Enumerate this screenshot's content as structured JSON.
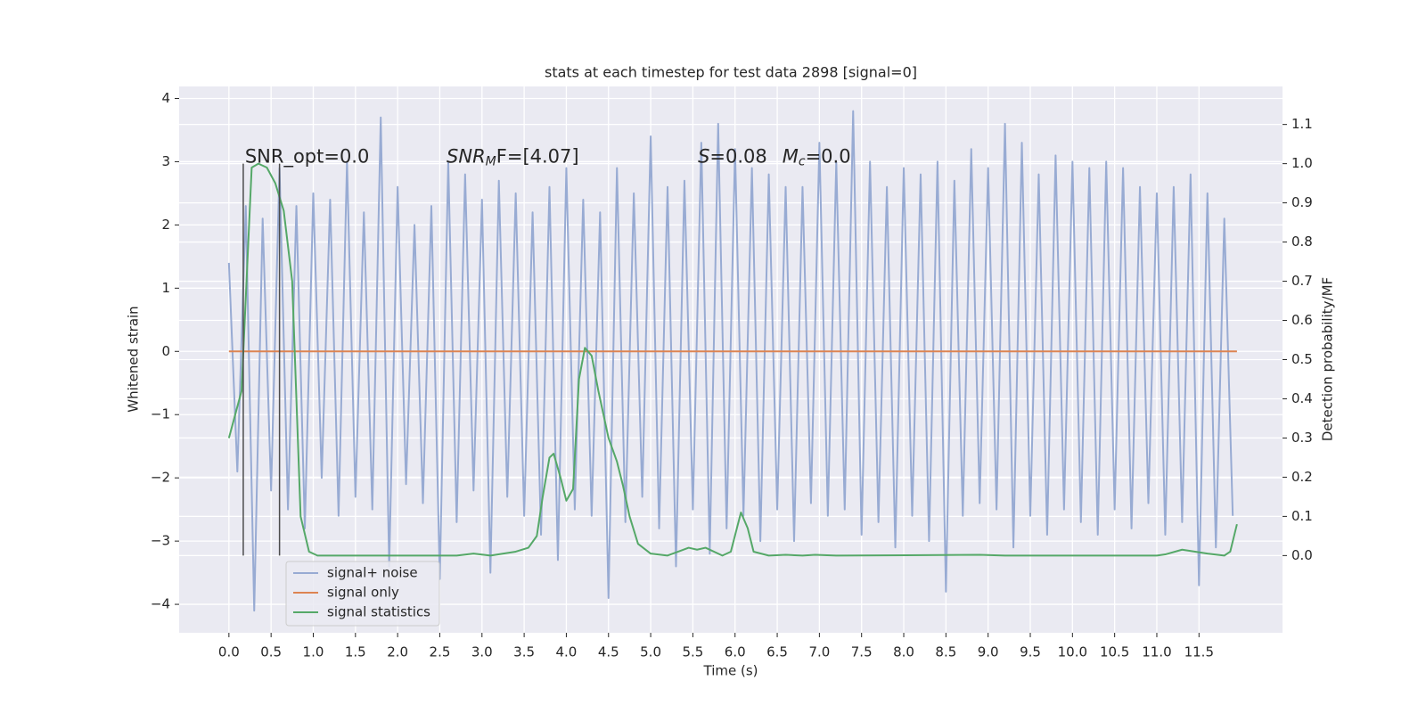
{
  "chart_data": {
    "type": "line",
    "title": "stats at each timestep for test data 2898 [signal=0]",
    "xlabel": "Time (s)",
    "ylabel": "Whitened strain",
    "y2label": "Detection probability/MF",
    "xlim": [
      -0.59,
      12.49
    ],
    "ylim": [
      -4.45,
      4.19
    ],
    "y2lim": [
      -0.197,
      1.197
    ],
    "xticks": [
      {
        "value": 0,
        "label": "0.0"
      },
      0.5,
      {
        "value": 1,
        "label": "1.0"
      },
      1.5,
      {
        "value": 2,
        "label": "2.0"
      },
      2.5,
      {
        "value": 3,
        "label": "3.0"
      },
      3.5,
      {
        "value": 4,
        "label": "4.0"
      },
      4.5,
      {
        "value": 5,
        "label": "5.0"
      },
      5.5,
      {
        "value": 6,
        "label": "6.0"
      },
      6.5,
      {
        "value": 7,
        "label": "7.0"
      },
      7.5,
      {
        "value": 8,
        "label": "8.0"
      },
      8.5,
      {
        "value": 9,
        "label": "9.0"
      },
      9.5,
      {
        "value": 10,
        "label": "10.0"
      },
      10.5,
      {
        "value": 11,
        "label": "11.0"
      },
      11.5
    ],
    "yticks": [
      {
        "value": -4,
        "label": "−4"
      },
      {
        "value": -3,
        "label": "−3"
      },
      {
        "value": -2,
        "label": "−2"
      },
      {
        "value": -1,
        "label": "−1"
      },
      0,
      1,
      2,
      3,
      4
    ],
    "y2ticks": [
      {
        "value": 0,
        "label": "0.0"
      },
      0.1,
      0.2,
      0.3,
      0.4,
      0.5,
      0.6,
      0.7,
      0.8,
      0.9,
      {
        "value": 1,
        "label": "1.0"
      },
      1.1
    ],
    "grid": true,
    "legend": "lower left",
    "series": [
      {
        "name": "signal+ noise",
        "color": "#98abd3",
        "x": [
          0,
          0.1,
          0.2,
          0.3,
          0.4,
          0.5,
          0.6,
          0.7,
          0.8,
          0.9,
          1,
          1.1,
          1.2,
          1.3,
          1.4,
          1.5,
          1.6,
          1.7,
          1.8,
          1.9,
          2,
          2.1,
          2.2,
          2.3,
          2.4,
          2.5,
          2.6,
          2.7,
          2.8,
          2.9,
          3,
          3.1,
          3.2,
          3.3,
          3.4,
          3.5,
          3.6,
          3.7,
          3.8,
          3.9,
          4,
          4.1,
          4.2,
          4.3,
          4.4,
          4.5,
          4.6,
          4.7,
          4.8,
          4.9,
          5,
          5.1,
          5.2,
          5.3,
          5.4,
          5.5,
          5.6,
          5.7,
          5.8,
          5.9,
          6,
          6.1,
          6.2,
          6.3,
          6.4,
          6.5,
          6.6,
          6.7,
          6.8,
          6.9,
          7,
          7.1,
          7.2,
          7.3,
          7.4,
          7.5,
          7.6,
          7.7,
          7.8,
          7.9,
          8,
          8.1,
          8.2,
          8.3,
          8.4,
          8.5,
          8.6,
          8.7,
          8.8,
          8.9,
          9,
          9.1,
          9.2,
          9.3,
          9.4,
          9.5,
          9.6,
          9.7,
          9.8,
          9.9,
          10,
          10.1,
          10.2,
          10.3,
          10.4,
          10.5,
          10.6,
          10.7,
          10.8,
          10.9,
          11,
          11.1,
          11.2,
          11.3,
          11.4,
          11.5,
          11.6,
          11.7,
          11.8,
          11.9
        ],
        "values": [
          1.4,
          -1.9,
          2.3,
          -4.1,
          2.1,
          -2.2,
          2.9,
          -2.5,
          2.3,
          -2.8,
          2.5,
          -2.0,
          2.4,
          -2.6,
          3.0,
          -2.3,
          2.2,
          -2.5,
          3.7,
          -3.4,
          2.6,
          -2.1,
          2.0,
          -2.4,
          2.3,
          -3.6,
          3.0,
          -2.7,
          2.8,
          -2.2,
          2.4,
          -3.5,
          2.7,
          -2.3,
          2.5,
          -2.6,
          2.2,
          -2.9,
          2.6,
          -3.3,
          2.9,
          -2.5,
          2.4,
          -2.6,
          2.2,
          -3.9,
          2.9,
          -2.7,
          2.5,
          -2.3,
          3.4,
          -2.8,
          2.6,
          -3.4,
          2.7,
          -2.5,
          3.3,
          -3.2,
          3.6,
          -2.8,
          3.2,
          -2.6,
          2.9,
          -3.0,
          2.8,
          -2.5,
          2.6,
          -3.0,
          2.6,
          -2.4,
          3.3,
          -2.6,
          3.0,
          -2.5,
          3.8,
          -2.9,
          3.0,
          -2.7,
          2.6,
          -3.1,
          2.9,
          -2.6,
          2.8,
          -3.0,
          3.0,
          -3.8,
          2.7,
          -2.6,
          3.2,
          -2.4,
          2.9,
          -2.5,
          3.6,
          -3.1,
          3.3,
          -2.6,
          2.8,
          -2.9,
          3.1,
          -2.5,
          3.0,
          -2.7,
          2.9,
          -2.9,
          3.0,
          -2.5,
          2.9,
          -2.8,
          2.6,
          -2.4,
          2.5,
          -2.9,
          2.6,
          -2.7,
          2.8,
          -3.7,
          2.5,
          -3.1,
          2.1,
          -2.6
        ]
      },
      {
        "name": "signal only",
        "color": "#dd8452",
        "x": [
          0,
          11.95
        ],
        "values": [
          0,
          0
        ]
      },
      {
        "name": "signal statistics",
        "color": "#55a868",
        "axis": "y2",
        "x": [
          0,
          0.15,
          0.27,
          0.35,
          0.45,
          0.55,
          0.65,
          0.75,
          0.85,
          0.95,
          1.05,
          2.7,
          2.9,
          3.1,
          3.4,
          3.55,
          3.65,
          3.72,
          3.8,
          3.85,
          3.93,
          4.0,
          4.08,
          4.15,
          4.22,
          4.3,
          4.38,
          4.5,
          4.6,
          4.67,
          4.75,
          4.85,
          5.0,
          5.2,
          5.45,
          5.55,
          5.65,
          5.85,
          5.95,
          6.07,
          6.15,
          6.22,
          6.4,
          6.6,
          6.8,
          6.95,
          7.2,
          8.9,
          9.2,
          11.0,
          11.1,
          11.3,
          11.6,
          11.8,
          11.87,
          11.95
        ],
        "values": [
          0.3,
          0.42,
          0.99,
          1.0,
          0.99,
          0.95,
          0.88,
          0.7,
          0.1,
          0.01,
          0,
          0,
          0.005,
          0,
          0.01,
          0.02,
          0.05,
          0.15,
          0.25,
          0.26,
          0.2,
          0.14,
          0.17,
          0.45,
          0.53,
          0.51,
          0.42,
          0.3,
          0.24,
          0.18,
          0.1,
          0.03,
          0.005,
          0,
          0.02,
          0.015,
          0.02,
          0,
          0.01,
          0.11,
          0.07,
          0.01,
          0,
          0.002,
          0,
          0.002,
          0,
          0.002,
          0,
          0,
          0.003,
          0.015,
          0.005,
          0,
          0.01,
          0.08
        ]
      }
    ],
    "vlines": {
      "x": [
        0.17,
        0.6
      ],
      "ymin": 0,
      "ymax": 1,
      "axis": "y2",
      "color": "#4d4d4d"
    },
    "annotations": [
      {
        "x": 0.19,
        "y": 3.07,
        "segments": [
          {
            "text": "SNR_opt=0.0"
          }
        ]
      },
      {
        "x": 2.58,
        "y": 3.07,
        "segments": [
          {
            "text": "SNR",
            "style": "italic"
          },
          {
            "text": "M",
            "style": "sub"
          },
          {
            "text": "F=[4.07]"
          }
        ]
      },
      {
        "x": 5.56,
        "y": 3.07,
        "segments": [
          {
            "text": "S",
            "style": "italic"
          },
          {
            "text": "=0.08"
          }
        ]
      },
      {
        "x": 6.56,
        "y": 3.07,
        "segments": [
          {
            "text": "M",
            "style": "italic"
          },
          {
            "text": "c",
            "style": "sub"
          },
          {
            "text": "=0.0"
          }
        ]
      }
    ]
  }
}
